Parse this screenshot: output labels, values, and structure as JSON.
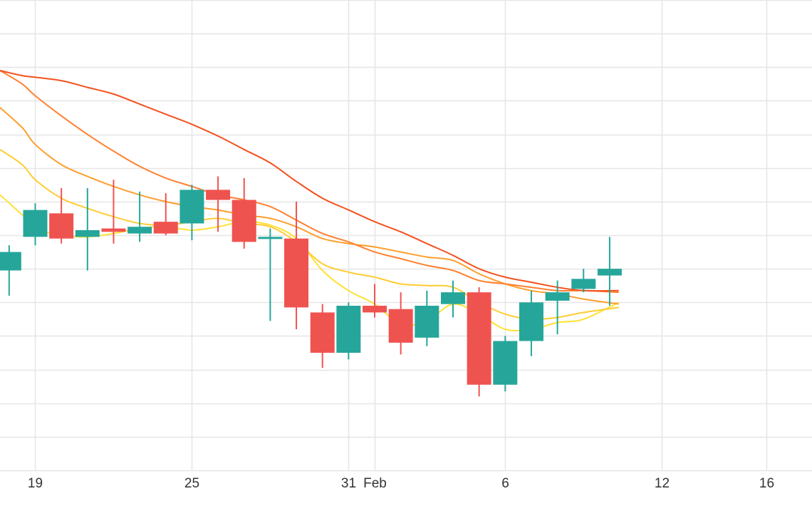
{
  "chart_data": {
    "type": "candlestick",
    "title": "",
    "xlabel": "",
    "ylabel": "",
    "ylim": [
      0,
      14
    ],
    "grid": true,
    "legend": "none",
    "x_tick_labels": [
      "19",
      "25",
      "31",
      "Feb",
      "6",
      "12",
      "16"
    ],
    "x_tick_days": [
      1,
      7,
      13,
      14,
      19,
      25,
      29
    ],
    "x_range_days": [
      -0.35,
      30.75
    ],
    "colors": {
      "up": "#26a69a",
      "down": "#ef5350",
      "grid": "#e6e6e6",
      "axis_text": "#333333"
    },
    "candles": [
      {
        "day": 0,
        "open": 5.95,
        "close": 6.5,
        "high": 6.7,
        "low": 5.2
      },
      {
        "day": 1,
        "open": 6.95,
        "close": 7.75,
        "high": 7.95,
        "low": 6.7
      },
      {
        "day": 2,
        "open": 7.65,
        "close": 6.9,
        "high": 8.4,
        "low": 6.75
      },
      {
        "day": 3,
        "open": 6.95,
        "close": 7.15,
        "high": 8.4,
        "low": 5.95
      },
      {
        "day": 4,
        "open": 7.2,
        "close": 7.1,
        "high": 8.65,
        "low": 6.75
      },
      {
        "day": 5,
        "open": 7.05,
        "close": 7.25,
        "high": 8.3,
        "low": 6.8
      },
      {
        "day": 6,
        "open": 7.4,
        "close": 7.05,
        "high": 8.25,
        "low": 7.0
      },
      {
        "day": 7,
        "open": 7.35,
        "close": 8.35,
        "high": 8.5,
        "low": 6.85
      },
      {
        "day": 8,
        "open": 8.35,
        "close": 8.05,
        "high": 8.75,
        "low": 7.1
      },
      {
        "day": 9,
        "open": 8.05,
        "close": 6.8,
        "high": 8.7,
        "low": 6.6
      },
      {
        "day": 10,
        "open": 6.9,
        "close": 6.95,
        "high": 7.2,
        "low": 4.45
      },
      {
        "day": 11,
        "open": 6.9,
        "close": 4.85,
        "high": 8.0,
        "low": 4.2
      },
      {
        "day": 12,
        "open": 4.7,
        "close": 3.5,
        "high": 4.95,
        "low": 3.05
      },
      {
        "day": 13,
        "open": 3.5,
        "close": 4.9,
        "high": 5.0,
        "low": 3.3
      },
      {
        "day": 14,
        "open": 4.9,
        "close": 4.7,
        "high": 5.55,
        "low": 4.55
      },
      {
        "day": 15,
        "open": 4.8,
        "close": 3.8,
        "high": 5.3,
        "low": 3.45
      },
      {
        "day": 16,
        "open": 3.95,
        "close": 4.9,
        "high": 5.35,
        "low": 3.7
      },
      {
        "day": 17,
        "open": 4.95,
        "close": 5.3,
        "high": 5.65,
        "low": 4.55
      },
      {
        "day": 18,
        "open": 5.3,
        "close": 2.55,
        "high": 5.45,
        "low": 2.2
      },
      {
        "day": 19,
        "open": 2.55,
        "close": 3.85,
        "high": 4.0,
        "low": 2.35
      },
      {
        "day": 20,
        "open": 3.85,
        "close": 5.0,
        "high": 5.35,
        "low": 3.4
      },
      {
        "day": 21,
        "open": 5.05,
        "close": 5.3,
        "high": 5.65,
        "low": 4.05
      },
      {
        "day": 22,
        "open": 5.4,
        "close": 5.7,
        "high": 6.0,
        "low": 5.3
      },
      {
        "day": 23,
        "open": 5.8,
        "close": 6.0,
        "high": 6.95,
        "low": 4.9
      }
    ],
    "series": [
      {
        "color": "#ffe135",
        "x": [
          -0.35,
          0.5,
          1,
          2,
          3,
          4,
          5,
          6,
          7,
          8,
          9,
          10,
          11,
          12,
          13,
          14,
          15,
          16,
          17,
          18,
          19,
          20,
          21,
          22,
          23.35
        ],
        "values": [
          8.2,
          7.6,
          7.2,
          7.0,
          6.95,
          7.05,
          7.2,
          7.25,
          7.15,
          7.25,
          7.4,
          7.3,
          6.9,
          5.95,
          5.35,
          4.95,
          4.35,
          4.45,
          4.95,
          4.65,
          4.2,
          4.2,
          4.4,
          4.5,
          5.0
        ]
      },
      {
        "color": "#ffcc33",
        "x": [
          -0.35,
          0.5,
          1,
          2,
          3,
          4,
          5,
          6,
          7,
          8,
          9,
          10,
          11,
          12,
          13,
          14,
          15,
          16,
          17,
          18,
          19,
          20,
          21,
          22,
          23.35
        ],
        "values": [
          9.55,
          9.1,
          8.65,
          8.1,
          7.8,
          7.55,
          7.35,
          7.3,
          7.4,
          7.5,
          7.35,
          7.25,
          6.8,
          6.15,
          5.9,
          5.75,
          5.55,
          5.5,
          5.45,
          5.0,
          4.65,
          4.5,
          4.55,
          4.7,
          4.85
        ]
      },
      {
        "color": "#ff9e2c",
        "x": [
          -0.35,
          0.5,
          1,
          2,
          3,
          4,
          5,
          6,
          7,
          8,
          9,
          10,
          11,
          12,
          13,
          14,
          15,
          16,
          17,
          18,
          19,
          20,
          21,
          22,
          23.35
        ],
        "values": [
          10.8,
          10.2,
          9.7,
          9.1,
          8.75,
          8.45,
          8.2,
          8.0,
          7.85,
          7.75,
          7.6,
          7.5,
          7.25,
          6.9,
          6.75,
          6.65,
          6.5,
          6.35,
          6.25,
          5.85,
          5.55,
          5.35,
          5.25,
          5.1,
          4.95
        ]
      },
      {
        "color": "#ff8030",
        "x": [
          -0.35,
          0.5,
          1,
          2,
          3,
          4,
          5,
          6,
          7,
          8,
          9,
          10,
          11,
          12,
          13,
          14,
          15,
          16,
          17,
          18,
          19,
          20,
          21,
          22,
          23.35
        ],
        "values": [
          11.9,
          11.5,
          11.15,
          10.55,
          10.0,
          9.5,
          9.05,
          8.7,
          8.45,
          8.2,
          8.05,
          7.85,
          7.45,
          7.05,
          6.8,
          6.5,
          6.3,
          6.1,
          5.95,
          5.65,
          5.55,
          5.45,
          5.35,
          5.35,
          5.3
        ]
      },
      {
        "color": "#f4511e",
        "x": [
          -0.35,
          0.5,
          1,
          2,
          3,
          4,
          5,
          6,
          7,
          8,
          9,
          10,
          11,
          12,
          13,
          14,
          15,
          16,
          17,
          18,
          19,
          20,
          21,
          22,
          23.35
        ],
        "values": [
          11.9,
          11.75,
          11.7,
          11.6,
          11.4,
          11.2,
          10.9,
          10.6,
          10.3,
          9.95,
          9.55,
          9.15,
          8.6,
          8.1,
          7.75,
          7.4,
          7.1,
          6.75,
          6.4,
          6.0,
          5.75,
          5.6,
          5.45,
          5.35,
          5.35
        ]
      }
    ]
  }
}
